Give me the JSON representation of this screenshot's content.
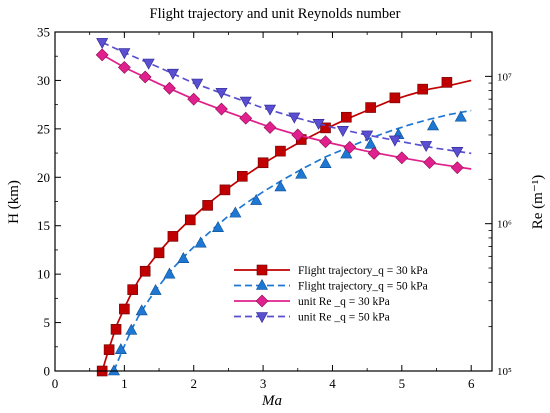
{
  "chart_data": {
    "type": "line",
    "title": "Flight trajectory and unit Reynolds number",
    "xlabel": "Ma",
    "ylabel_left": "H (km)",
    "ylabel_right": "Re (m⁻¹)",
    "xlim": [
      0,
      6.3
    ],
    "ylim_left": [
      0,
      35
    ],
    "ylim_right_log": [
      100000,
      20000000
    ],
    "x_ticks": [
      0,
      1,
      2,
      3,
      4,
      5,
      6
    ],
    "y_ticks_left": [
      0,
      5,
      10,
      15,
      20,
      25,
      30,
      35
    ],
    "y_ticks_right": [
      {
        "value": 100000,
        "label": "10⁵"
      },
      {
        "value": 1000000,
        "label": "10⁶"
      },
      {
        "value": 10000000,
        "label": "10⁷"
      }
    ],
    "grid": false,
    "legend_position": "bottom-right",
    "series": [
      {
        "name": "Flight trajectory_q = 30 kPa",
        "axis": "left",
        "color": "#c00000",
        "dash": "solid",
        "marker": "square",
        "line_x": [
          0.68,
          0.74,
          0.8,
          0.9,
          1.0,
          1.1,
          1.2,
          1.35,
          1.5,
          1.7,
          1.9,
          2.1,
          2.3,
          2.5,
          2.75,
          3.0,
          3.3,
          3.6,
          3.9,
          4.2,
          4.5,
          4.8,
          5.1,
          5.4,
          5.7,
          6.0
        ],
        "line_y": [
          0,
          1.4,
          2.8,
          4.9,
          6.5,
          8.0,
          9.3,
          10.9,
          12.3,
          13.9,
          15.3,
          16.6,
          17.8,
          18.9,
          20.2,
          21.4,
          22.7,
          23.9,
          25.0,
          26.0,
          26.9,
          27.8,
          28.5,
          29.1,
          29.5,
          30.0
        ],
        "marker_x": [
          0.68,
          0.78,
          0.88,
          1.0,
          1.12,
          1.3,
          1.5,
          1.7,
          1.95,
          2.2,
          2.45,
          2.7,
          3.0,
          3.25,
          3.55,
          3.9,
          4.2,
          4.55,
          4.9,
          5.3,
          5.65
        ],
        "marker_y": [
          0,
          2.2,
          4.3,
          6.4,
          8.4,
          10.3,
          12.2,
          13.9,
          15.6,
          17.1,
          18.7,
          20.1,
          21.5,
          22.7,
          23.9,
          25.1,
          26.2,
          27.2,
          28.2,
          29.1,
          29.8
        ]
      },
      {
        "name": "Flight trajectory_q = 50 kPa",
        "axis": "left",
        "color": "#1f77d4",
        "dash": "dashed",
        "marker": "triangle-up",
        "line_x": [
          0.85,
          0.9,
          1.0,
          1.1,
          1.2,
          1.35,
          1.5,
          1.7,
          1.9,
          2.1,
          2.3,
          2.5,
          2.75,
          3.0,
          3.3,
          3.6,
          3.9,
          4.2,
          4.5,
          4.8,
          5.1,
          5.4,
          5.7,
          6.0
        ],
        "line_y": [
          0,
          0.9,
          2.6,
          4.2,
          5.6,
          7.3,
          8.8,
          10.6,
          12.1,
          13.5,
          14.8,
          16.0,
          17.3,
          18.5,
          19.8,
          21.0,
          22.1,
          23.0,
          23.9,
          24.7,
          25.4,
          26.0,
          26.5,
          26.9
        ],
        "marker_x": [
          0.85,
          0.95,
          1.1,
          1.25,
          1.45,
          1.65,
          1.85,
          2.1,
          2.35,
          2.6,
          2.9,
          3.25,
          3.55,
          3.9,
          4.2,
          4.55,
          4.95,
          5.45,
          5.85
        ],
        "marker_y": [
          0,
          2.2,
          4.2,
          6.2,
          8.3,
          10.0,
          11.6,
          13.2,
          14.8,
          16.3,
          17.6,
          19.0,
          20.3,
          21.4,
          22.4,
          23.4,
          24.4,
          25.3,
          26.2
        ]
      },
      {
        "name": "unit Re _q = 30 kPa",
        "axis": "right",
        "color": "#e0208c",
        "dash": "solid",
        "marker": "diamond",
        "line_x": [
          0.68,
          1.0,
          1.5,
          2.0,
          2.5,
          3.0,
          3.5,
          4.0,
          4.5,
          5.0,
          5.5,
          6.0
        ],
        "line_y": [
          14000000,
          11500000,
          8900000,
          7000000,
          5700000,
          4700000,
          4000000,
          3500000,
          3100000,
          2800000,
          2550000,
          2350000
        ],
        "marker_x": [
          0.68,
          1.0,
          1.3,
          1.65,
          2.0,
          2.4,
          2.75,
          3.1,
          3.5,
          3.9,
          4.25,
          4.6,
          5.0,
          5.4,
          5.8
        ],
        "marker_y": [
          14000000,
          11500000,
          9900000,
          8300000,
          7000000,
          6000000,
          5200000,
          4500000,
          4000000,
          3600000,
          3300000,
          3000000,
          2800000,
          2600000,
          2400000
        ]
      },
      {
        "name": "unit Re _q = 50 kPa",
        "axis": "right",
        "color": "#5a4fd0",
        "dash": "dashed",
        "marker": "triangle-down",
        "line_x": [
          0.68,
          1.0,
          1.5,
          2.0,
          2.5,
          3.0,
          3.5,
          4.0,
          4.5,
          5.0,
          5.5,
          6.0
        ],
        "line_y": [
          17000000,
          14500000,
          11500000,
          9000000,
          7400000,
          6100000,
          5200000,
          4500000,
          4000000,
          3600000,
          3250000,
          3000000
        ],
        "marker_x": [
          0.68,
          1.0,
          1.35,
          1.7,
          2.05,
          2.4,
          2.75,
          3.1,
          3.45,
          3.8,
          4.15,
          4.5,
          4.9,
          5.35,
          5.8
        ],
        "marker_y": [
          17000000,
          14500000,
          12300000,
          10500000,
          9000000,
          7800000,
          6800000,
          6000000,
          5300000,
          4800000,
          4300000,
          4000000,
          3700000,
          3400000,
          3100000
        ]
      }
    ]
  }
}
